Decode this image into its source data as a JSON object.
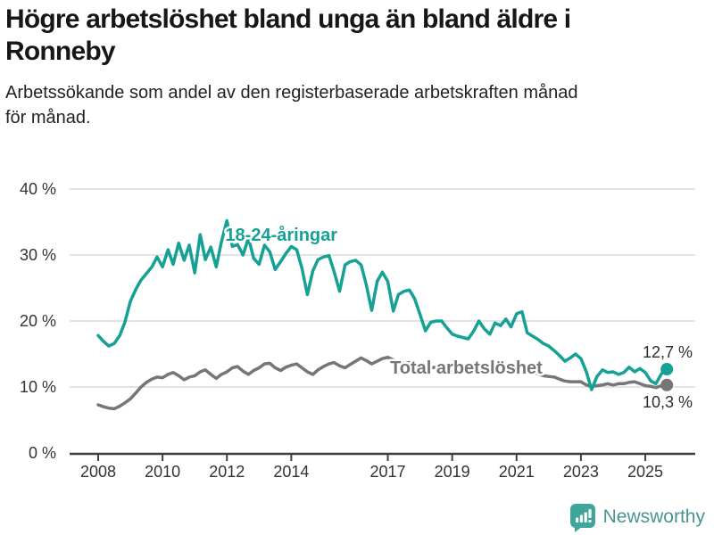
{
  "header": {
    "title": "Högre arbetslöshet bland unga än bland äldre i Ronneby",
    "title_lines": [
      "Högre arbetslöshet bland unga än bland äldre i",
      "Ronneby"
    ],
    "subtitle": "Arbetssökande som andel av den registerbaserade arbetskraften månad för månad.",
    "subtitle_lines": [
      "Arbetssökande som andel av den registerbaserade arbetskraften månad",
      "för månad."
    ]
  },
  "footer": {
    "brand": "Newsworthy",
    "brand_color": "#4a9492",
    "logo_color": "#3fa69b"
  },
  "chart_data": {
    "type": "line",
    "title": "Högre arbetslöshet bland unga än bland äldre i Ronneby",
    "xlabel": "",
    "ylabel": "",
    "xlim": [
      2008,
      2025.75
    ],
    "ylim": [
      0,
      40
    ],
    "grid": "horizontal",
    "grid_color": "#e3e3e3",
    "axis_color": "#3f3f3f",
    "tick_label_color": "#333333",
    "end_label_color": "#2e2e2e",
    "yticks": [
      {
        "v": 0,
        "label": "0 %"
      },
      {
        "v": 10,
        "label": "10 %"
      },
      {
        "v": 20,
        "label": "20 %"
      },
      {
        "v": 30,
        "label": "30 %"
      },
      {
        "v": 40,
        "label": "40 %"
      }
    ],
    "xticks": [
      {
        "v": 2008,
        "label": "2008"
      },
      {
        "v": 2010,
        "label": "2010"
      },
      {
        "v": 2012,
        "label": "2012"
      },
      {
        "v": 2014,
        "label": "2014"
      },
      {
        "v": 2017,
        "label": "2017"
      },
      {
        "v": 2019,
        "label": "2019"
      },
      {
        "v": 2021,
        "label": "2021"
      },
      {
        "v": 2023,
        "label": "2023"
      },
      {
        "v": 2025,
        "label": "2025"
      }
    ],
    "series": [
      {
        "id": "youth",
        "name": "18-24-åringar",
        "color": "#16a195",
        "end_value": 12.7,
        "end_label": "12,7 %",
        "end_label_side": "above",
        "label": {
          "x": 2011.95,
          "y": 33.1
        },
        "points": [
          [
            2008,
            17.8
          ],
          [
            2008.17,
            16.9
          ],
          [
            2008.33,
            16.2
          ],
          [
            2008.5,
            16.6
          ],
          [
            2008.67,
            17.8
          ],
          [
            2008.83,
            19.8
          ],
          [
            2009,
            23
          ],
          [
            2009.17,
            24.8
          ],
          [
            2009.33,
            26.2
          ],
          [
            2009.5,
            27.2
          ],
          [
            2009.67,
            28.2
          ],
          [
            2009.83,
            29.7
          ],
          [
            2010,
            28.2
          ],
          [
            2010.17,
            30.8
          ],
          [
            2010.33,
            28.6
          ],
          [
            2010.5,
            31.8
          ],
          [
            2010.67,
            29.2
          ],
          [
            2010.83,
            31.5
          ],
          [
            2011,
            27.3
          ],
          [
            2011.17,
            33.1
          ],
          [
            2011.33,
            29.3
          ],
          [
            2011.5,
            31.2
          ],
          [
            2011.67,
            28.2
          ],
          [
            2011.83,
            32
          ],
          [
            2012,
            35.2
          ],
          [
            2012.17,
            31.3
          ],
          [
            2012.33,
            31.6
          ],
          [
            2012.5,
            30
          ],
          [
            2012.67,
            32.6
          ],
          [
            2012.83,
            29.5
          ],
          [
            2013,
            28.6
          ],
          [
            2013.17,
            31.5
          ],
          [
            2013.33,
            30.5
          ],
          [
            2013.5,
            27.8
          ],
          [
            2013.67,
            29
          ],
          [
            2013.83,
            30.2
          ],
          [
            2014,
            31.3
          ],
          [
            2014.17,
            30.8
          ],
          [
            2014.33,
            28
          ],
          [
            2014.5,
            24
          ],
          [
            2014.67,
            27.6
          ],
          [
            2014.83,
            29.3
          ],
          [
            2015,
            29.7
          ],
          [
            2015.17,
            29.9
          ],
          [
            2015.33,
            27.5
          ],
          [
            2015.5,
            24.5
          ],
          [
            2015.67,
            28.5
          ],
          [
            2015.83,
            29
          ],
          [
            2016,
            29.2
          ],
          [
            2016.17,
            28.5
          ],
          [
            2016.33,
            25.5
          ],
          [
            2016.5,
            21.6
          ],
          [
            2016.67,
            26
          ],
          [
            2016.83,
            27.4
          ],
          [
            2017,
            26
          ],
          [
            2017.17,
            21.5
          ],
          [
            2017.33,
            24
          ],
          [
            2017.5,
            24.5
          ],
          [
            2017.67,
            24.7
          ],
          [
            2017.83,
            23.4
          ],
          [
            2018,
            21
          ],
          [
            2018.17,
            18.5
          ],
          [
            2018.33,
            19.8
          ],
          [
            2018.5,
            20
          ],
          [
            2018.67,
            20
          ],
          [
            2018.83,
            19
          ],
          [
            2019,
            18
          ],
          [
            2019.17,
            17.7
          ],
          [
            2019.33,
            17.5
          ],
          [
            2019.5,
            17.3
          ],
          [
            2019.67,
            18.5
          ],
          [
            2019.83,
            20
          ],
          [
            2020,
            18.8
          ],
          [
            2020.17,
            18
          ],
          [
            2020.33,
            19.7
          ],
          [
            2020.5,
            19.3
          ],
          [
            2020.67,
            20.3
          ],
          [
            2020.83,
            19.1
          ],
          [
            2021,
            21.1
          ],
          [
            2021.17,
            21.4
          ],
          [
            2021.33,
            18.2
          ],
          [
            2021.5,
            17.7
          ],
          [
            2021.67,
            17.2
          ],
          [
            2021.83,
            16.6
          ],
          [
            2022,
            16.2
          ],
          [
            2022.17,
            15.5
          ],
          [
            2022.33,
            14.8
          ],
          [
            2022.5,
            13.9
          ],
          [
            2022.67,
            14.4
          ],
          [
            2022.83,
            15
          ],
          [
            2023,
            14.3
          ],
          [
            2023.17,
            12.3
          ],
          [
            2023.33,
            9.6
          ],
          [
            2023.5,
            11.6
          ],
          [
            2023.67,
            12.6
          ],
          [
            2023.83,
            12.2
          ],
          [
            2024,
            12.3
          ],
          [
            2024.17,
            11.9
          ],
          [
            2024.33,
            12.2
          ],
          [
            2024.5,
            13
          ],
          [
            2024.67,
            12.3
          ],
          [
            2024.83,
            12.8
          ],
          [
            2025,
            12.2
          ],
          [
            2025.17,
            10.9
          ],
          [
            2025.33,
            10.5
          ],
          [
            2025.5,
            12
          ],
          [
            2025.67,
            12.7
          ]
        ]
      },
      {
        "id": "total",
        "name": "Total arbetslöshet",
        "color": "#75757a",
        "end_value": 10.3,
        "end_label": "10,3 %",
        "end_label_side": "below",
        "label": {
          "x": 2017.07,
          "y": 13.0
        },
        "points": [
          [
            2008,
            7.3
          ],
          [
            2008.17,
            7
          ],
          [
            2008.33,
            6.8
          ],
          [
            2008.5,
            6.7
          ],
          [
            2008.67,
            7.1
          ],
          [
            2008.83,
            7.6
          ],
          [
            2009,
            8.2
          ],
          [
            2009.17,
            9.1
          ],
          [
            2009.33,
            10
          ],
          [
            2009.5,
            10.7
          ],
          [
            2009.67,
            11.2
          ],
          [
            2009.83,
            11.5
          ],
          [
            2010,
            11.4
          ],
          [
            2010.17,
            11.9
          ],
          [
            2010.33,
            12.2
          ],
          [
            2010.5,
            11.7
          ],
          [
            2010.67,
            11.1
          ],
          [
            2010.83,
            11.5
          ],
          [
            2011,
            11.7
          ],
          [
            2011.17,
            12.3
          ],
          [
            2011.33,
            12.6
          ],
          [
            2011.5,
            11.9
          ],
          [
            2011.67,
            11.3
          ],
          [
            2011.83,
            11.9
          ],
          [
            2012,
            12.3
          ],
          [
            2012.17,
            12.9
          ],
          [
            2012.33,
            13.1
          ],
          [
            2012.5,
            12.4
          ],
          [
            2012.67,
            11.9
          ],
          [
            2012.83,
            12.5
          ],
          [
            2013,
            12.9
          ],
          [
            2013.17,
            13.5
          ],
          [
            2013.33,
            13.6
          ],
          [
            2013.5,
            12.9
          ],
          [
            2013.67,
            12.5
          ],
          [
            2013.83,
            13
          ],
          [
            2014,
            13.3
          ],
          [
            2014.17,
            13.5
          ],
          [
            2014.33,
            12.9
          ],
          [
            2014.5,
            12.3
          ],
          [
            2014.67,
            11.9
          ],
          [
            2014.83,
            12.6
          ],
          [
            2015,
            13.1
          ],
          [
            2015.17,
            13.5
          ],
          [
            2015.33,
            13.7
          ],
          [
            2015.5,
            13.2
          ],
          [
            2015.67,
            12.9
          ],
          [
            2015.83,
            13.4
          ],
          [
            2016,
            13.9
          ],
          [
            2016.17,
            14.4
          ],
          [
            2016.33,
            14
          ],
          [
            2016.5,
            13.5
          ],
          [
            2016.67,
            13.9
          ],
          [
            2016.83,
            14.3
          ],
          [
            2017,
            14.5
          ],
          [
            2017.17,
            14.1
          ],
          [
            2017.33,
            13.9
          ],
          [
            2017.5,
            13.6
          ],
          [
            2017.67,
            13.7
          ],
          [
            2017.83,
            13.5
          ],
          [
            2018,
            13.3
          ],
          [
            2018.17,
            13.1
          ],
          [
            2018.33,
            12.9
          ],
          [
            2018.5,
            13
          ],
          [
            2018.67,
            12.8
          ],
          [
            2018.83,
            12.6
          ],
          [
            2019,
            12.5
          ],
          [
            2019.17,
            12.4
          ],
          [
            2019.33,
            12.3
          ],
          [
            2019.5,
            12.4
          ],
          [
            2019.67,
            12.5
          ],
          [
            2019.83,
            12.7
          ],
          [
            2020,
            12.9
          ],
          [
            2020.17,
            13.3
          ],
          [
            2020.33,
            13.7
          ],
          [
            2020.5,
            13.5
          ],
          [
            2020.67,
            13.3
          ],
          [
            2020.83,
            13.1
          ],
          [
            2021,
            12.9
          ],
          [
            2021.17,
            12.6
          ],
          [
            2021.33,
            12.4
          ],
          [
            2021.5,
            12.2
          ],
          [
            2021.67,
            12
          ],
          [
            2021.83,
            11.7
          ],
          [
            2022,
            11.6
          ],
          [
            2022.17,
            11.5
          ],
          [
            2022.33,
            11.2
          ],
          [
            2022.5,
            10.9
          ],
          [
            2022.67,
            10.8
          ],
          [
            2022.83,
            10.8
          ],
          [
            2023,
            10.8
          ],
          [
            2023.17,
            10.3
          ],
          [
            2023.33,
            10.1
          ],
          [
            2023.5,
            10.2
          ],
          [
            2023.67,
            10.3
          ],
          [
            2023.83,
            10.5
          ],
          [
            2024,
            10.3
          ],
          [
            2024.17,
            10.5
          ],
          [
            2024.33,
            10.5
          ],
          [
            2024.5,
            10.7
          ],
          [
            2024.67,
            10.8
          ],
          [
            2024.83,
            10.5
          ],
          [
            2025,
            10.2
          ],
          [
            2025.17,
            10.1
          ],
          [
            2025.33,
            9.9
          ],
          [
            2025.5,
            10.2
          ],
          [
            2025.67,
            10.3
          ]
        ]
      }
    ]
  }
}
